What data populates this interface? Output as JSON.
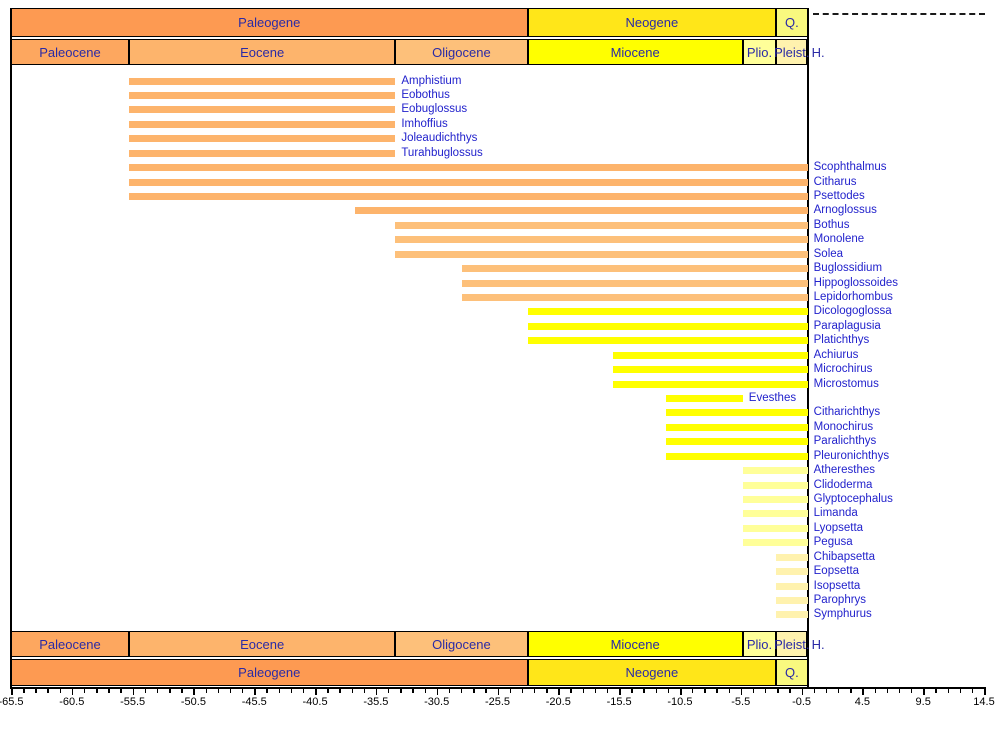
{
  "chart_data": {
    "type": "bar",
    "subtype": "stratigraphic-range-chart",
    "title": "",
    "xlabel": "",
    "unit": "Ma",
    "xlim": [
      -65.5,
      14.5
    ],
    "x_major_step": 5,
    "x_minor_step": 1,
    "grid": false,
    "x_tick_labels": [
      "-65.5",
      "-60.5",
      "-55.5",
      "-50.5",
      "-45.5",
      "-40.5",
      "-35.5",
      "-30.5",
      "-25.5",
      "-20.5",
      "-15.5",
      "-10.5",
      "-5.5",
      "-0.5",
      "4.5",
      "9.5",
      "14.5"
    ],
    "periods": [
      {
        "label": "Paleogene",
        "start": -65.5,
        "end": -23.03,
        "color": "#FD9A52"
      },
      {
        "label": "Neogene",
        "start": -23.03,
        "end": -2.588,
        "color": "#FFE619"
      },
      {
        "label": "Q.",
        "start": -2.588,
        "end": 0,
        "color": "#F9F97F"
      }
    ],
    "epochs": [
      {
        "label": "Paleocene",
        "start": -65.5,
        "end": -55.8,
        "color": "#FDA75F"
      },
      {
        "label": "Eocene",
        "start": -55.8,
        "end": -33.9,
        "color": "#FDB46C"
      },
      {
        "label": "Oligocene",
        "start": -33.9,
        "end": -23.03,
        "color": "#FDC07A"
      },
      {
        "label": "Miocene",
        "start": -23.03,
        "end": -5.332,
        "color": "#FFFF00"
      },
      {
        "label": "Plio.",
        "start": -5.332,
        "end": -2.588,
        "color": "#FFFF99"
      },
      {
        "label": "Pleist.",
        "start": -2.588,
        "end": -0.0117,
        "color": "#FFF2AE"
      },
      {
        "label": "H.",
        "start": -0.0117,
        "end": 0,
        "color": "#FEF2E0",
        "label_outside": true
      }
    ],
    "taxa": [
      {
        "label": "Amphistium",
        "start": -55.8,
        "end": -33.9,
        "color": "#FDB46C"
      },
      {
        "label": "Eobothus",
        "start": -55.8,
        "end": -33.9,
        "color": "#FDB46C"
      },
      {
        "label": "Eobuglossus",
        "start": -55.8,
        "end": -33.9,
        "color": "#FDB46C"
      },
      {
        "label": "Imhoffius",
        "start": -55.8,
        "end": -33.9,
        "color": "#FDB46C"
      },
      {
        "label": "Joleaudichthys",
        "start": -55.8,
        "end": -33.9,
        "color": "#FDB46C"
      },
      {
        "label": "Turahbuglossus",
        "start": -55.8,
        "end": -33.9,
        "color": "#FDB46C"
      },
      {
        "label": "Scophthalmus",
        "start": -55.8,
        "end": 0,
        "color": "#FDB46C"
      },
      {
        "label": "Citharus",
        "start": -55.8,
        "end": 0,
        "color": "#FDB46C"
      },
      {
        "label": "Psettodes",
        "start": -55.8,
        "end": 0,
        "color": "#FDB46C"
      },
      {
        "label": "Arnoglossus",
        "start": -37.2,
        "end": 0,
        "color": "#FDB46C"
      },
      {
        "label": "Bothus",
        "start": -33.9,
        "end": 0,
        "color": "#FDC07A"
      },
      {
        "label": "Monolene",
        "start": -33.9,
        "end": 0,
        "color": "#FDC07A"
      },
      {
        "label": "Solea",
        "start": -33.9,
        "end": 0,
        "color": "#FDC07A"
      },
      {
        "label": "Buglossidium",
        "start": -28.4,
        "end": 0,
        "color": "#FDC07A"
      },
      {
        "label": "Hippoglossoides",
        "start": -28.4,
        "end": 0,
        "color": "#FDC07A"
      },
      {
        "label": "Lepidorhombus",
        "start": -28.4,
        "end": 0,
        "color": "#FDC07A"
      },
      {
        "label": "Dicologoglossa",
        "start": -23.03,
        "end": 0,
        "color": "#FFFF00"
      },
      {
        "label": "Paraplagusia",
        "start": -23.03,
        "end": 0,
        "color": "#FFFF00"
      },
      {
        "label": "Platichthys",
        "start": -23.03,
        "end": 0,
        "color": "#FFFF00"
      },
      {
        "label": "Achiurus",
        "start": -15.97,
        "end": 0,
        "color": "#FFFF00"
      },
      {
        "label": "Microchirus",
        "start": -15.97,
        "end": 0,
        "color": "#FFFF00"
      },
      {
        "label": "Microstomus",
        "start": -15.97,
        "end": 0,
        "color": "#FFFF00"
      },
      {
        "label": "Evesthes",
        "start": -11.61,
        "end": -5.332,
        "color": "#FFFF00"
      },
      {
        "label": "Citharichthys",
        "start": -11.61,
        "end": 0,
        "color": "#FFFF00"
      },
      {
        "label": "Monochirus",
        "start": -11.61,
        "end": 0,
        "color": "#FFFF00"
      },
      {
        "label": "Paralichthys",
        "start": -11.61,
        "end": 0,
        "color": "#FFFF00"
      },
      {
        "label": "Pleuronichthys",
        "start": -11.61,
        "end": 0,
        "color": "#FFFF00"
      },
      {
        "label": "Atheresthes",
        "start": -5.332,
        "end": 0,
        "color": "#FFFF99"
      },
      {
        "label": "Clidoderma",
        "start": -5.332,
        "end": 0,
        "color": "#FFFF99"
      },
      {
        "label": "Glyptocephalus",
        "start": -5.332,
        "end": 0,
        "color": "#FFFF99"
      },
      {
        "label": "Limanda",
        "start": -5.332,
        "end": 0,
        "color": "#FFFF99"
      },
      {
        "label": "Lyopsetta",
        "start": -5.332,
        "end": 0,
        "color": "#FFFF99"
      },
      {
        "label": "Pegusa",
        "start": -5.332,
        "end": 0,
        "color": "#FFFF99"
      },
      {
        "label": "Chibapsetta",
        "start": -2.588,
        "end": 0,
        "color": "#FFF2AE"
      },
      {
        "label": "Eopsetta",
        "start": -2.588,
        "end": 0,
        "color": "#FFF2AE"
      },
      {
        "label": "Isopsetta",
        "start": -2.588,
        "end": 0,
        "color": "#FFF2AE"
      },
      {
        "label": "Parophrys",
        "start": -2.588,
        "end": 0,
        "color": "#FFF2AE"
      },
      {
        "label": "Symphurus",
        "start": -2.588,
        "end": 0,
        "color": "#FFF2AE"
      }
    ]
  },
  "colors": {
    "band_label_text": "#2A2AA6",
    "taxon_label_text": "#2222CC",
    "axis_text": "#000000",
    "frame": "#000000",
    "background": "#FFFFFF"
  }
}
